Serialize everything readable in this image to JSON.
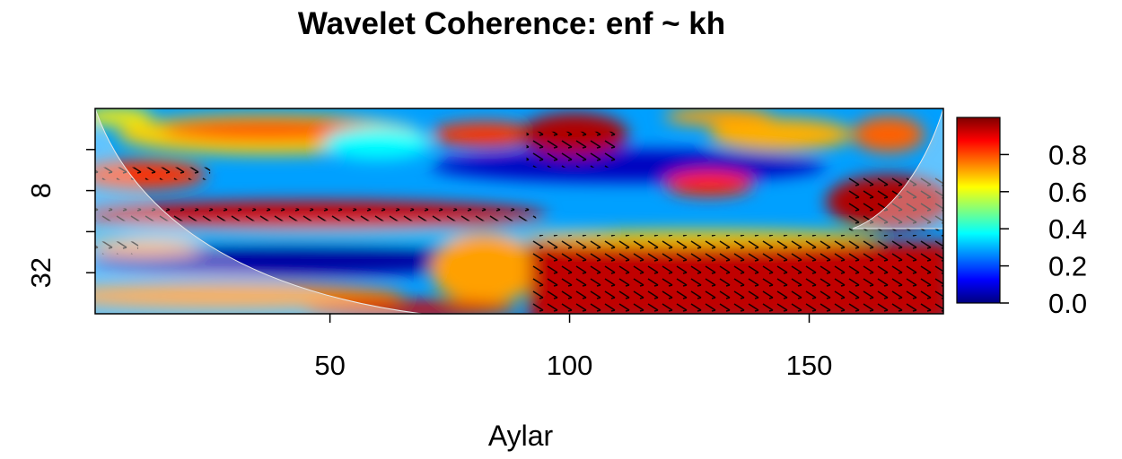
{
  "chart_data": {
    "type": "heatmap",
    "title": "Wavelet Coherence: enf ~ kh",
    "xlabel": "Aylar",
    "ylabel": "",
    "x_ticks": [
      50,
      100,
      150
    ],
    "x_tick_labels": [
      "50",
      "100",
      "150"
    ],
    "xlim": [
      1,
      178
    ],
    "y_scale": "log2",
    "y_ticks": [
      4,
      8,
      16,
      32
    ],
    "y_tick_labels": [
      "",
      "8",
      "",
      "32"
    ],
    "ylim": [
      2,
      64
    ],
    "color_scale": {
      "min": 0.0,
      "max": 1.0,
      "ticks": [
        0.0,
        0.2,
        0.4,
        0.6,
        0.8
      ],
      "tick_labels": [
        "0.0",
        "0.2",
        "0.4",
        "0.6",
        "0.8"
      ],
      "colors": [
        "#00007f",
        "#0000ff",
        "#007fff",
        "#00ffff",
        "#7fff7f",
        "#ffff00",
        "#ff7f00",
        "#ff0000",
        "#7f0000"
      ]
    },
    "high_coherence_regions": [
      {
        "label": "band-period-6",
        "x": [
          1,
          25
        ],
        "period": 6,
        "coherence": 0.85
      },
      {
        "label": "band-period-12",
        "x": [
          1,
          93
        ],
        "period": 12,
        "coherence": 0.9
      },
      {
        "label": "band-period-21",
        "x": [
          1,
          10
        ],
        "period": 21,
        "coherence": 0.85
      },
      {
        "label": "block-top-mid",
        "x": [
          91,
          110
        ],
        "period": 4,
        "coherence": 0.95
      },
      {
        "label": "block-lower-right",
        "x": [
          92,
          178
        ],
        "period": 32,
        "coherence": 0.95
      },
      {
        "label": "block-right-mid",
        "x": [
          158,
          178
        ],
        "period": 10,
        "coherence": 0.9
      }
    ],
    "grid": false,
    "legend": "right"
  }
}
